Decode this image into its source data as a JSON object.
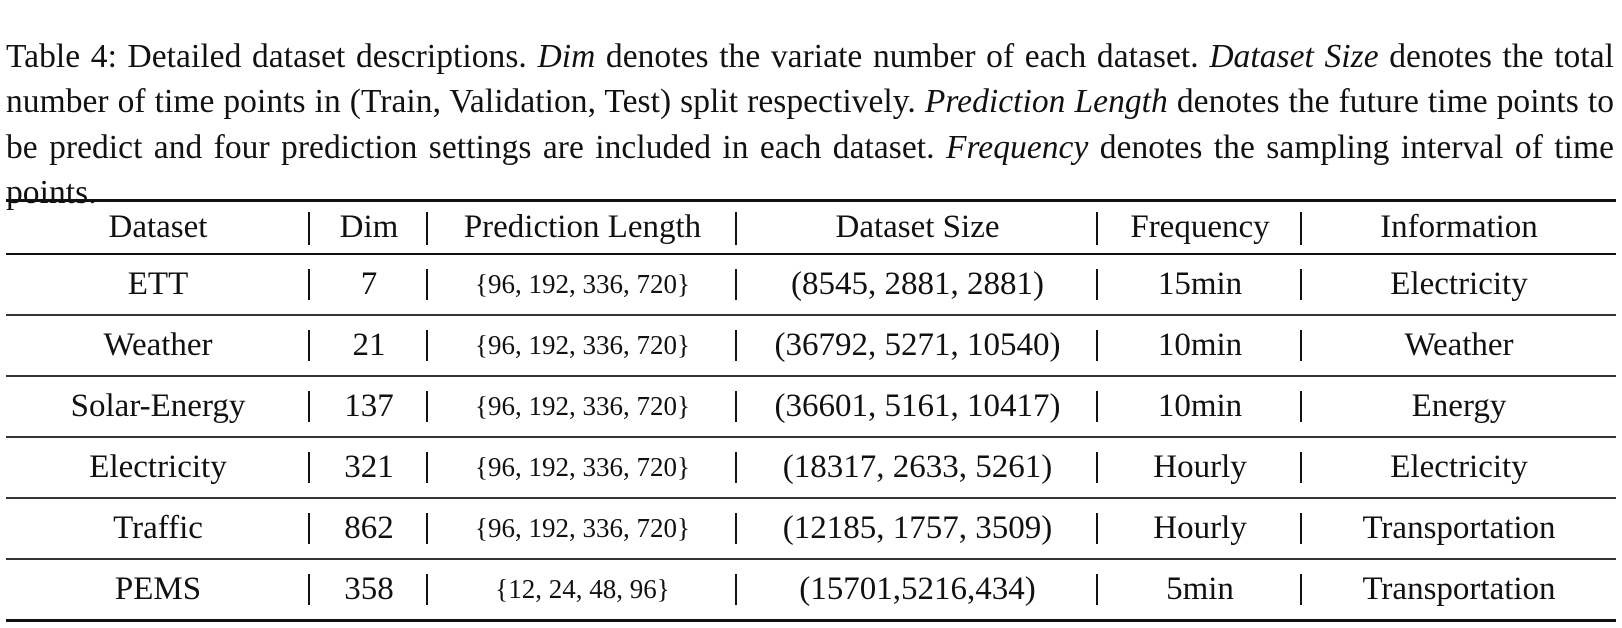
{
  "caption": {
    "label": "Table 4: Detailed dataset descriptions. ",
    "dim_term": "Dim",
    "dim_text": " denotes the variate number of each dataset. ",
    "size_term": "Dataset Size",
    "size_text": " denotes the total number of time points in (Train, Validation, Test) split respectively. ",
    "pred_term": "Prediction Length",
    "pred_text": " denotes the future time points to be predict and four prediction settings are included in each dataset. ",
    "freq_term": "Frequency",
    "freq_text": " denotes the sampling interval of time points."
  },
  "table": {
    "headers": [
      "Dataset",
      "Dim",
      "Prediction Length",
      "Dataset Size",
      "Frequency",
      "Information"
    ],
    "rows": [
      [
        "ETT",
        "7",
        "{96, 192, 336, 720}",
        "(8545, 2881, 2881)",
        "15min",
        "Electricity"
      ],
      [
        "Weather",
        "21",
        "{96, 192, 336, 720}",
        "(36792, 5271, 10540)",
        "10min",
        "Weather"
      ],
      [
        "Solar-Energy",
        "137",
        "{96, 192, 336, 720}",
        "(36601, 5161, 10417)",
        "10min",
        "Energy"
      ],
      [
        "Electricity",
        "321",
        "{96, 192, 336, 720}",
        "(18317, 2633, 5261)",
        "Hourly",
        "Electricity"
      ],
      [
        "Traffic",
        "862",
        "{96, 192, 336, 720}",
        "(12185, 1757, 3509)",
        "Hourly",
        "Transportation"
      ],
      [
        "PEMS",
        "358",
        "{12, 24, 48, 96}",
        "(15701,5216,434)",
        "5min",
        "Transportation"
      ]
    ]
  }
}
